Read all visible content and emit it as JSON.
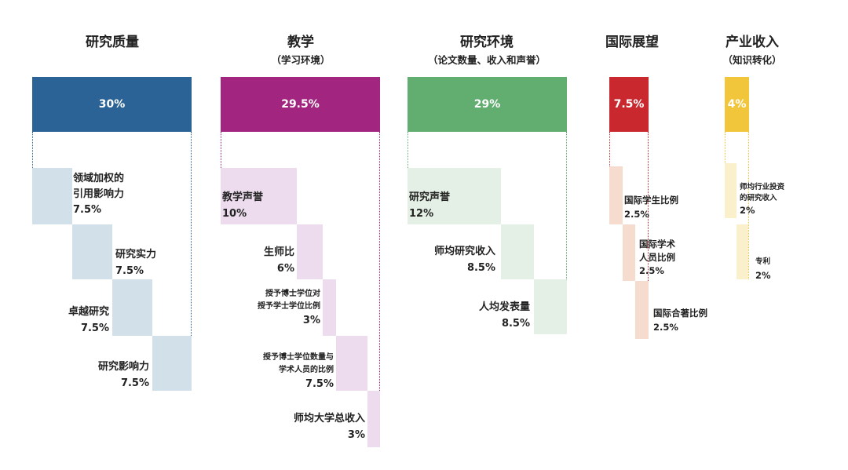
{
  "columns": [
    {
      "title": "研究质量",
      "subtitle": "",
      "weight": "30%",
      "color": "#2c6396",
      "light": "#d2e0ea",
      "items": [
        {
          "label": "领域加权的\n引用影响力",
          "value": "7.5%"
        },
        {
          "label": "研究实力",
          "value": "7.5%"
        },
        {
          "label": "卓越研究",
          "value": "7.5%"
        },
        {
          "label": "研究影响力",
          "value": "7.5%"
        }
      ]
    },
    {
      "title": "教学",
      "subtitle": "（学习环境）",
      "weight": "29.5%",
      "color": "#a22580",
      "light": "#ecdcee",
      "items": [
        {
          "label": "教学声誉",
          "value": "10%"
        },
        {
          "label": "生师比",
          "value": "6%"
        },
        {
          "label": "授予博士学位对\n授予学士学位比例",
          "value": "3%"
        },
        {
          "label": "授予博士学位数量与\n学术人员的比例",
          "value": "7.5%"
        },
        {
          "label": "师均大学总收入",
          "value": "3%"
        }
      ]
    },
    {
      "title": "研究环境",
      "subtitle": "（论文数量、收入和声誉）",
      "weight": "29%",
      "color": "#62ad70",
      "light": "#e4f0e5",
      "items": [
        {
          "label": "研究声誉",
          "value": "12%"
        },
        {
          "label": "师均研究收入",
          "value": "8.5%"
        },
        {
          "label": "人均发表量",
          "value": "8.5%"
        }
      ]
    },
    {
      "title": "国际展望",
      "subtitle": "",
      "weight": "7.5%",
      "color": "#c8282e",
      "light": "#f6dccf",
      "items": [
        {
          "label": "国际学生比例",
          "value": "2.5%"
        },
        {
          "label": "国际学术\n人员比例",
          "value": "2.5%"
        },
        {
          "label": "国际合著比例",
          "value": "2.5%"
        }
      ]
    },
    {
      "title": "产业收入",
      "subtitle": "（知识转化）",
      "weight": "4%",
      "color": "#f2c63a",
      "light": "#fbf0cc",
      "items": [
        {
          "label": "师均行业投资\n的研究收入",
          "value": "2%"
        },
        {
          "label": "专利",
          "value": "2%"
        }
      ]
    }
  ]
}
